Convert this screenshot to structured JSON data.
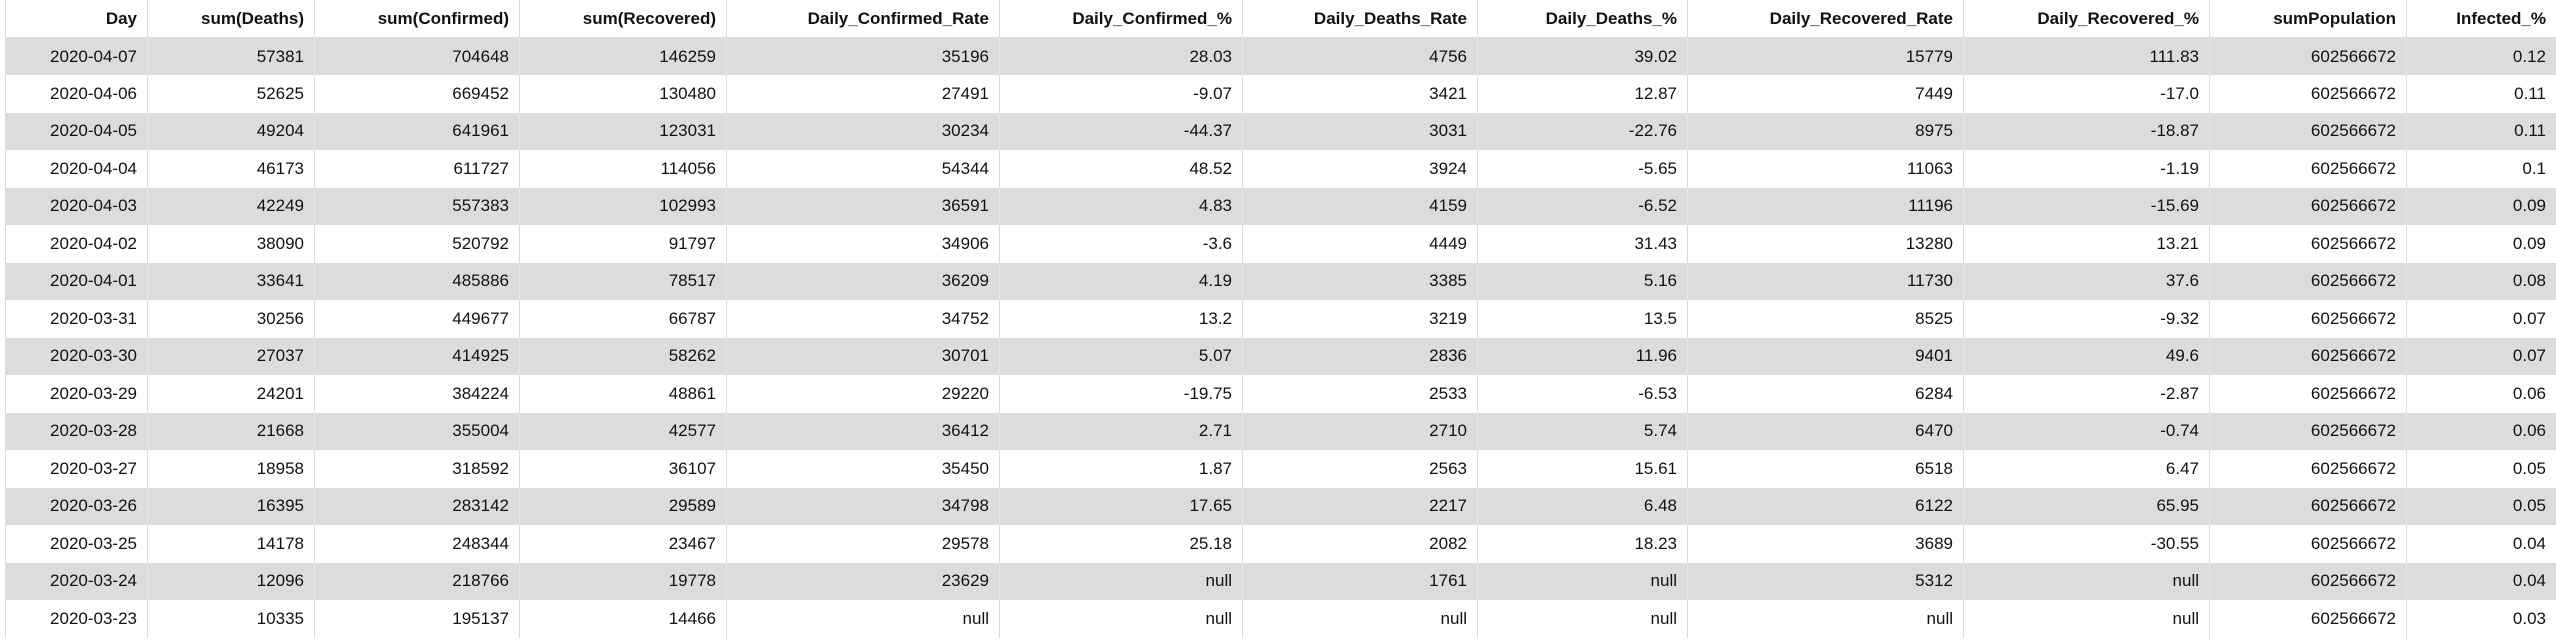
{
  "table": {
    "columns": [
      "Day",
      "sum(Deaths)",
      "sum(Confirmed)",
      "sum(Recovered)",
      "Daily_Confirmed_Rate",
      "Daily_Confirmed_%",
      "Daily_Deaths_Rate",
      "Daily_Deaths_%",
      "Daily_Recovered_Rate",
      "Daily_Recovered_%",
      "sumPopulation",
      "Infected_%"
    ],
    "rows": [
      [
        "2020-04-07",
        "57381",
        "704648",
        "146259",
        "35196",
        "28.03",
        "4756",
        "39.02",
        "15779",
        "111.83",
        "602566672",
        "0.12"
      ],
      [
        "2020-04-06",
        "52625",
        "669452",
        "130480",
        "27491",
        "-9.07",
        "3421",
        "12.87",
        "7449",
        "-17.0",
        "602566672",
        "0.11"
      ],
      [
        "2020-04-05",
        "49204",
        "641961",
        "123031",
        "30234",
        "-44.37",
        "3031",
        "-22.76",
        "8975",
        "-18.87",
        "602566672",
        "0.11"
      ],
      [
        "2020-04-04",
        "46173",
        "611727",
        "114056",
        "54344",
        "48.52",
        "3924",
        "-5.65",
        "11063",
        "-1.19",
        "602566672",
        "0.1"
      ],
      [
        "2020-04-03",
        "42249",
        "557383",
        "102993",
        "36591",
        "4.83",
        "4159",
        "-6.52",
        "11196",
        "-15.69",
        "602566672",
        "0.09"
      ],
      [
        "2020-04-02",
        "38090",
        "520792",
        "91797",
        "34906",
        "-3.6",
        "4449",
        "31.43",
        "13280",
        "13.21",
        "602566672",
        "0.09"
      ],
      [
        "2020-04-01",
        "33641",
        "485886",
        "78517",
        "36209",
        "4.19",
        "3385",
        "5.16",
        "11730",
        "37.6",
        "602566672",
        "0.08"
      ],
      [
        "2020-03-31",
        "30256",
        "449677",
        "66787",
        "34752",
        "13.2",
        "3219",
        "13.5",
        "8525",
        "-9.32",
        "602566672",
        "0.07"
      ],
      [
        "2020-03-30",
        "27037",
        "414925",
        "58262",
        "30701",
        "5.07",
        "2836",
        "11.96",
        "9401",
        "49.6",
        "602566672",
        "0.07"
      ],
      [
        "2020-03-29",
        "24201",
        "384224",
        "48861",
        "29220",
        "-19.75",
        "2533",
        "-6.53",
        "6284",
        "-2.87",
        "602566672",
        "0.06"
      ],
      [
        "2020-03-28",
        "21668",
        "355004",
        "42577",
        "36412",
        "2.71",
        "2710",
        "5.74",
        "6470",
        "-0.74",
        "602566672",
        "0.06"
      ],
      [
        "2020-03-27",
        "18958",
        "318592",
        "36107",
        "35450",
        "1.87",
        "2563",
        "15.61",
        "6518",
        "6.47",
        "602566672",
        "0.05"
      ],
      [
        "2020-03-26",
        "16395",
        "283142",
        "29589",
        "34798",
        "17.65",
        "2217",
        "6.48",
        "6122",
        "65.95",
        "602566672",
        "0.05"
      ],
      [
        "2020-03-25",
        "14178",
        "248344",
        "23467",
        "29578",
        "25.18",
        "2082",
        "18.23",
        "3689",
        "-30.55",
        "602566672",
        "0.04"
      ],
      [
        "2020-03-24",
        "12096",
        "218766",
        "19778",
        "23629",
        "null",
        "1761",
        "null",
        "5312",
        "null",
        "602566672",
        "0.04"
      ],
      [
        "2020-03-23",
        "10335",
        "195137",
        "14466",
        "null",
        "null",
        "null",
        "null",
        "null",
        "null",
        "602566672",
        "0.03"
      ]
    ]
  }
}
